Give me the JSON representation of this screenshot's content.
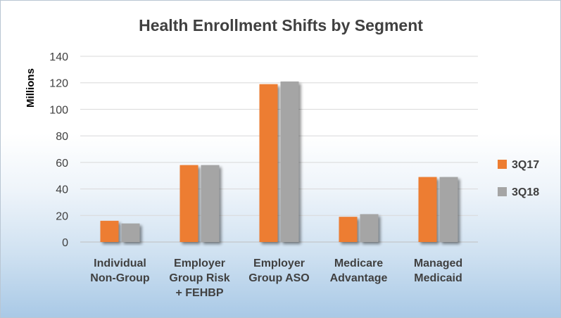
{
  "chart_data": {
    "type": "bar",
    "title": "Health Enrollment Shifts by Segment",
    "ylabel": "Millions",
    "xlabel": "",
    "ylim": [
      0,
      140
    ],
    "yticks": [
      0,
      20,
      40,
      60,
      80,
      100,
      120,
      140
    ],
    "categories": [
      [
        "Individual",
        "Non-Group"
      ],
      [
        "Employer",
        "Group Risk",
        "+ FEHBP"
      ],
      [
        "Employer",
        "Group ASO"
      ],
      [
        "Medicare",
        "Advantage"
      ],
      [
        "Managed",
        "Medicaid"
      ]
    ],
    "series": [
      {
        "name": "3Q17",
        "color": "#ED7D31",
        "values": [
          16,
          58,
          119,
          19,
          49
        ]
      },
      {
        "name": "3Q18",
        "color": "#A5A5A5",
        "values": [
          14,
          58,
          121,
          21,
          49
        ]
      }
    ],
    "grid": true,
    "legend_position": "right"
  }
}
